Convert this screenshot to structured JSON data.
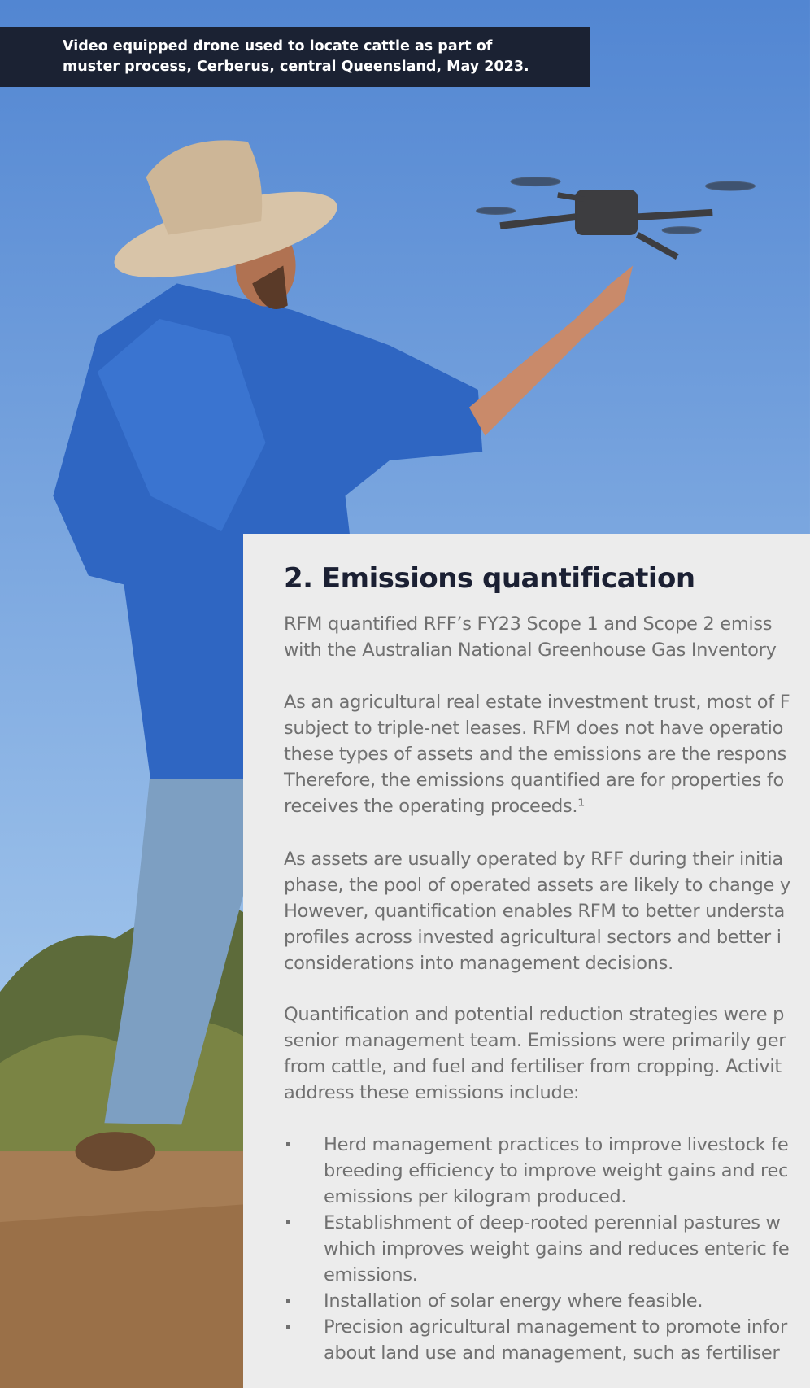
{
  "caption": {
    "lines": [
      "Video equipped drone used to locate cattle as part of",
      "muster process, Cerberus, central Queensland, May 2023."
    ]
  },
  "section": {
    "heading": "2. Emissions quantification",
    "paragraphs": [
      [
        "RFM quantified RFF’s FY23 Scope 1 and Scope 2 emiss",
        "with the Australian National Greenhouse Gas Inventory"
      ],
      [
        "As an agricultural real estate investment trust, most of F",
        "subject to triple-net leases. RFM does not have operatio",
        "these types of assets and the emissions are the respons",
        "Therefore, the emissions quantified are for properties fo",
        "receives the operating proceeds.¹"
      ],
      [
        "As assets are usually operated by RFF during their initia",
        "phase, the pool of operated assets are likely to change y",
        "However, quantification enables RFM to better understa",
        "profiles across invested agricultural sectors and better i",
        "considerations into management decisions."
      ],
      [
        "Quantification and potential reduction strategies were p",
        "senior management team. Emissions were primarily ger",
        "from cattle, and fuel and fertiliser from cropping. Activit",
        "address these emissions include:"
      ]
    ],
    "bullets": [
      [
        "Herd management practices to improve livestock fe",
        "breeding efficiency to improve weight gains and rec",
        "emissions per kilogram produced."
      ],
      [
        "Establishment of deep-rooted perennial pastures w",
        "which improves weight gains and reduces enteric fe",
        "emissions."
      ],
      [
        "Installation of solar energy where feasible."
      ],
      [
        "Precision agricultural management to promote infor",
        "about land use and management, such as fertiliser"
      ]
    ]
  }
}
